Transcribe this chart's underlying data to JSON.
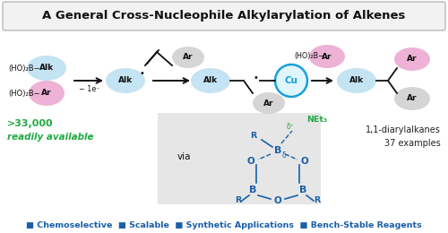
{
  "title": "A General Cross-Nucleophile Alkylarylation of Alkenes",
  "title_fontsize": 9.5,
  "title_box_color": "#f2f2f2",
  "bg_color": "#ffffff",
  "footer_text": "■ Chemoselective  ■ Scalable  ■ Synthetic Applications  ■ Bench-Stable Reagents",
  "footer_color": "#1a5fa8",
  "footer_fontsize": 6.8,
  "green_text1": ">33,000",
  "green_text2": "readily available",
  "green_color": "#22aa44",
  "right_text1": "1,1-diarylalkanes",
  "right_text2": "37 examples",
  "right_color": "#222222",
  "blue_color": "#1a5fa8",
  "pink_color": "#e899c8",
  "lightblue_color": "#b0daf0",
  "gray_color": "#c8c8c8",
  "cu_circle_color": "#1a9fd8",
  "line_color": "#111111"
}
